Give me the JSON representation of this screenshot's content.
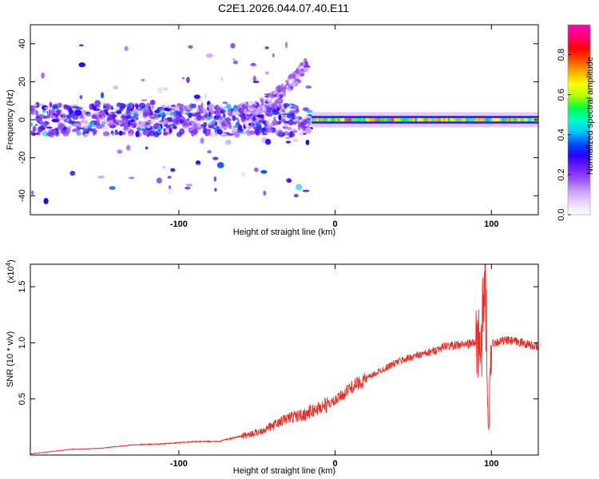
{
  "page_title": "C2E1.2026.044.07.40.E11",
  "colors": {
    "snr_line": "#ee2a24",
    "frame": "#000000",
    "rainbow": [
      "#ffffff",
      "#e9d8ff",
      "#c9a0ff",
      "#9b4dff",
      "#6a1fff",
      "#2a00ff",
      "#0050ff",
      "#00c8ff",
      "#00ffc8",
      "#00ff40",
      "#b0ff00",
      "#ffff00",
      "#ffb000",
      "#ff5000",
      "#ff0000",
      "#ff0078",
      "#ff00b0"
    ]
  },
  "chart_data": [
    {
      "type": "heatmap",
      "title": "C2E1.2026.044.07.40.E11",
      "xlabel": "Height of straight line (km)",
      "ylabel": "Frequency (Hz)",
      "xlim": [
        -195,
        130
      ],
      "ylim": [
        -50,
        50
      ],
      "x_ticks": [
        -100,
        0,
        100
      ],
      "x_tick_labels": [
        "-100",
        "0",
        "100"
      ],
      "y_ticks": [
        -40,
        -20,
        0,
        20,
        40
      ],
      "y_tick_labels": [
        "-40",
        "-20",
        "0",
        "20",
        "40"
      ],
      "colorbar": {
        "label": "Normalized spectral amplitude",
        "range": [
          0.0,
          0.95
        ],
        "ticks": [
          0.0,
          0.2,
          0.4,
          0.6,
          0.8
        ],
        "tick_labels": [
          "0.0",
          "0.2",
          "0.4",
          "0.6",
          "0.8"
        ]
      },
      "features": [
        {
          "name": "broadband-noise",
          "x_range": [
            -195,
            -15
          ],
          "freq_spread_hz": 8,
          "amplitude": 0.3
        },
        {
          "name": "rising-branch",
          "x_range": [
            -60,
            -18
          ],
          "freq_start_hz": 5,
          "freq_end_hz": 30,
          "amplitude": 0.15
        },
        {
          "name": "steady-line",
          "x_range": [
            -15,
            130
          ],
          "freq_hz": 0,
          "amplitude": 0.6
        }
      ]
    },
    {
      "type": "line",
      "xlabel": "Height of straight line (km)",
      "ylabel": "SNR (10 * v/v)",
      "y_multiplier": "(x10⁴)",
      "y_multiplier_base": "(x10",
      "y_multiplier_exp": "4",
      "y_multiplier_close": ")",
      "xlim": [
        -195,
        130
      ],
      "ylim": [
        0,
        1.7
      ],
      "x_ticks": [
        -100,
        0,
        100
      ],
      "x_tick_labels": [
        "-100",
        "0",
        "100"
      ],
      "y_ticks": [
        0.5,
        1.0,
        1.5
      ],
      "y_tick_labels": [
        "0.5",
        "1.0",
        "1.5"
      ],
      "series": [
        {
          "name": "SNR",
          "x": [
            -195,
            -170,
            -150,
            -130,
            -110,
            -90,
            -75,
            -60,
            -50,
            -40,
            -30,
            -20,
            -10,
            0,
            10,
            20,
            30,
            40,
            50,
            60,
            70,
            80,
            90,
            94,
            96,
            98,
            100,
            110,
            120,
            130
          ],
          "y": [
            0.01,
            0.05,
            0.06,
            0.09,
            0.1,
            0.12,
            0.12,
            0.17,
            0.2,
            0.26,
            0.33,
            0.36,
            0.42,
            0.48,
            0.6,
            0.68,
            0.76,
            0.83,
            0.88,
            0.91,
            0.97,
            0.98,
            1.0,
            1.05,
            1.6,
            0.15,
            1.0,
            1.02,
            1.0,
            0.96
          ]
        }
      ]
    }
  ]
}
